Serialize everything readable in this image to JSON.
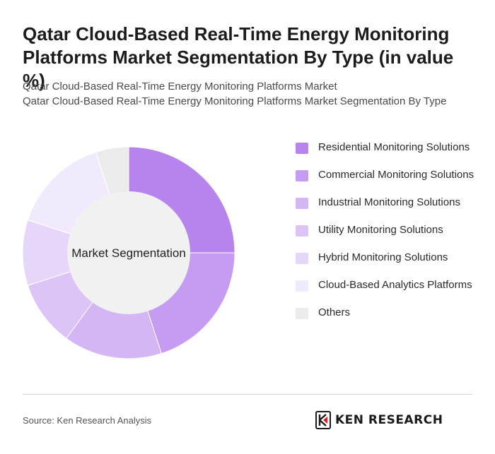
{
  "header": {
    "title": "Qatar Cloud-Based Real-Time Energy Monitoring Platforms Market Segmentation By Type (in value %)",
    "subtitle_line1": "Qatar Cloud-Based Real-Time Energy Monitoring Platforms Market",
    "subtitle_line2": "Qatar Cloud-Based Real-Time Energy Monitoring Platforms Market Segmentation By Type"
  },
  "chart_data": {
    "type": "pie",
    "variant": "donut",
    "center_label": "Market Segmentation",
    "categories": [
      "Residential Monitoring Solutions",
      "Commercial Monitoring Solutions",
      "Industrial Monitoring Solutions",
      "Utility Monitoring Solutions",
      "Hybrid Monitoring Solutions",
      "Cloud-Based Analytics Platforms",
      "Others"
    ],
    "values": [
      25,
      20,
      15,
      10,
      10,
      15,
      5
    ],
    "colors": [
      "#b784ee",
      "#c59cf1",
      "#d4b6f5",
      "#dcc4f7",
      "#e6d6f9",
      "#f1eafc",
      "#ebebeb"
    ],
    "legend_position": "right"
  },
  "footer": {
    "source": "Source: Ken Research Analysis",
    "logo_text": "KEN RESEARCH"
  }
}
